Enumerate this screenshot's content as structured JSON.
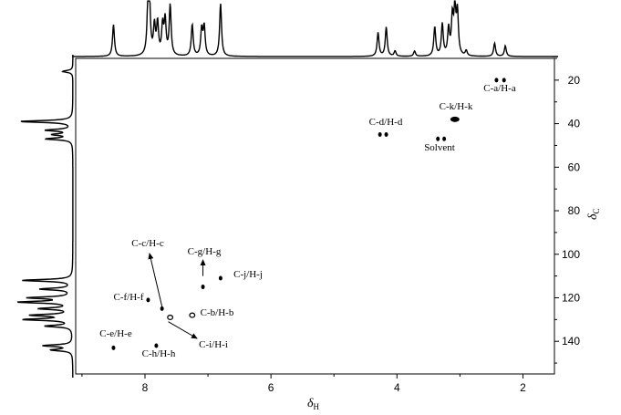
{
  "chart_data": {
    "type": "scatter",
    "subtype": "2D NMR HSQC spectrum",
    "x_axis": {
      "label": "δ",
      "label_sub": "H",
      "range": [
        9.1,
        1.5
      ],
      "reversed": true,
      "ticks": [
        8,
        6,
        4,
        2
      ]
    },
    "y_axis": {
      "label": "δ",
      "label_sub": "C",
      "range": [
        10,
        155
      ],
      "reversed": true,
      "position": "right",
      "ticks": [
        20,
        40,
        60,
        80,
        100,
        120,
        140
      ]
    },
    "cross_peaks": [
      {
        "label": "C-a/H-a",
        "x": [
          2.42,
          2.3
        ],
        "y": 20
      },
      {
        "label": "C-k/H-k",
        "x": [
          3.08
        ],
        "y": 38
      },
      {
        "label": "C-d/H-d",
        "x": [
          4.27,
          4.17
        ],
        "y": 45
      },
      {
        "label": "Solvent",
        "x": [
          3.35,
          3.25
        ],
        "y": 47
      },
      {
        "label": "C-g/H-g",
        "x": [
          7.08
        ],
        "y": 115
      },
      {
        "label": "C-j/H-j",
        "x": [
          6.8
        ],
        "y": 111
      },
      {
        "label": "C-f/H-f",
        "x": [
          7.95
        ],
        "y": 121
      },
      {
        "label": "C-c/H-c",
        "x": [
          7.73
        ],
        "y": 125
      },
      {
        "label": "C-i/H-i",
        "x": [
          7.6
        ],
        "y": 129
      },
      {
        "label": "C-b/H-b",
        "x": [
          7.25
        ],
        "y": 128
      },
      {
        "label": "C-e/H-e",
        "x": [
          8.5
        ],
        "y": 143
      },
      {
        "label": "C-h/H-h",
        "x": [
          7.82
        ],
        "y": 142
      }
    ],
    "top_projection_peaks": [
      {
        "x": 8.5,
        "h": 0.6
      },
      {
        "x": 7.95,
        "h": 1.0
      },
      {
        "x": 7.93,
        "h": 0.9
      },
      {
        "x": 7.85,
        "h": 0.55
      },
      {
        "x": 7.8,
        "h": 0.6
      },
      {
        "x": 7.72,
        "h": 0.55
      },
      {
        "x": 7.68,
        "h": 0.65
      },
      {
        "x": 7.6,
        "h": 0.95
      },
      {
        "x": 7.25,
        "h": 0.6
      },
      {
        "x": 7.1,
        "h": 0.5
      },
      {
        "x": 7.06,
        "h": 0.55
      },
      {
        "x": 6.8,
        "h": 1.0
      },
      {
        "x": 4.3,
        "h": 0.45
      },
      {
        "x": 4.17,
        "h": 0.55
      },
      {
        "x": 4.03,
        "h": 0.1
      },
      {
        "x": 3.72,
        "h": 0.1
      },
      {
        "x": 3.4,
        "h": 0.55
      },
      {
        "x": 3.28,
        "h": 0.6
      },
      {
        "x": 3.18,
        "h": 0.5
      },
      {
        "x": 3.12,
        "h": 0.7
      },
      {
        "x": 3.08,
        "h": 0.85
      },
      {
        "x": 3.04,
        "h": 0.8
      },
      {
        "x": 2.9,
        "h": 0.1
      },
      {
        "x": 2.45,
        "h": 0.25
      },
      {
        "x": 2.28,
        "h": 0.2
      }
    ],
    "left_projection_peaks": [
      {
        "y": 16,
        "h": 0.2
      },
      {
        "y": 39,
        "h": 1.0
      },
      {
        "y": 43,
        "h": 0.5
      },
      {
        "y": 47,
        "h": 0.5
      },
      {
        "y": 45,
        "h": 0.35
      },
      {
        "y": 112,
        "h": 0.95
      },
      {
        "y": 116,
        "h": 0.6
      },
      {
        "y": 120,
        "h": 0.8
      },
      {
        "y": 122,
        "h": 1.0
      },
      {
        "y": 125,
        "h": 0.6
      },
      {
        "y": 128,
        "h": 0.75
      },
      {
        "y": 130,
        "h": 0.9
      },
      {
        "y": 133,
        "h": 0.5
      },
      {
        "y": 142,
        "h": 0.55
      },
      {
        "y": 144,
        "h": 0.4
      }
    ],
    "arrows": [
      {
        "from": "C-c/H-c",
        "to_label": "C-c/H-c"
      },
      {
        "from": "C-g/H-g",
        "to_label": "C-g/H-g"
      },
      {
        "from": "C-i/H-i",
        "to_label": "C-i/H-i"
      }
    ]
  }
}
